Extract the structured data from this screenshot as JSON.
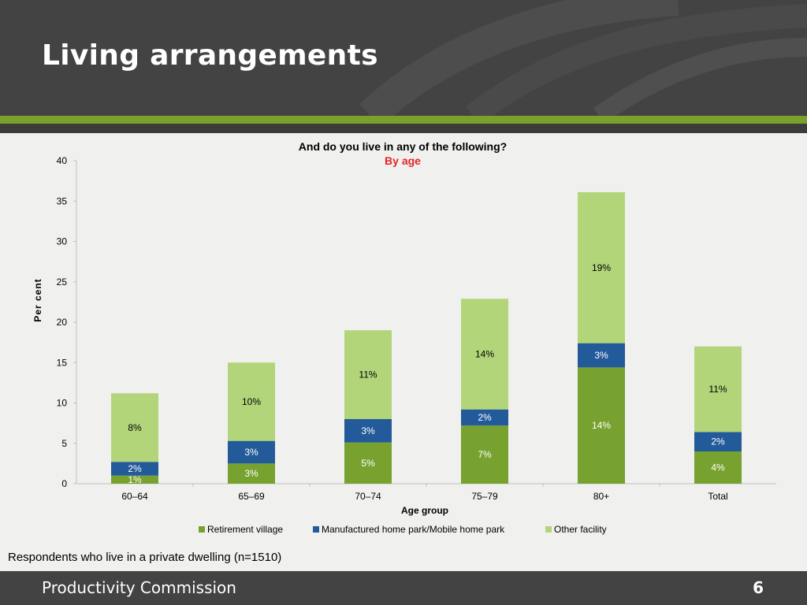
{
  "slide": {
    "title": "Living arrangements",
    "note": "Respondents who live in a private dwelling (n=1510)",
    "footer_text": "Productivity Commission",
    "page_number": "6"
  },
  "colors": {
    "header_bg": "#434343",
    "accent_green": "#7aa22a",
    "retirement_village": "#77a22f",
    "manufactured_home_park": "#235a9a",
    "other_facility": "#b2d57a"
  },
  "chart_data": {
    "type": "bar",
    "stacked": true,
    "title": "And do you live in any of the following?",
    "subtitle": "By age",
    "xlabel": "Age group",
    "ylabel": "Per cent",
    "ylim": [
      0,
      40
    ],
    "yticks": [
      0,
      5,
      10,
      15,
      20,
      25,
      30,
      35,
      40
    ],
    "grid": false,
    "legend_position": "bottom",
    "categories": [
      "60–64",
      "65–69",
      "70–74",
      "75–79",
      "80+",
      "Total"
    ],
    "series": [
      {
        "name": "Retirement village",
        "color": "#77a22f",
        "values": [
          1,
          2.5,
          5.1,
          7.2,
          14.4,
          4
        ],
        "labels": [
          "1%",
          "3%",
          "5%",
          "7%",
          "14%",
          "4%"
        ]
      },
      {
        "name": "Manufactured home park/Mobile home park",
        "color": "#235a9a",
        "values": [
          1.7,
          2.8,
          2.9,
          2,
          3,
          2.4
        ],
        "labels": [
          "2%",
          "3%",
          "3%",
          "2%",
          "3%",
          "2%"
        ]
      },
      {
        "name": "Other facility",
        "color": "#b2d57a",
        "values": [
          8.5,
          9.7,
          11,
          13.7,
          18.7,
          10.6
        ],
        "labels": [
          "8%",
          "10%",
          "11%",
          "14%",
          "19%",
          "11%"
        ]
      }
    ]
  }
}
